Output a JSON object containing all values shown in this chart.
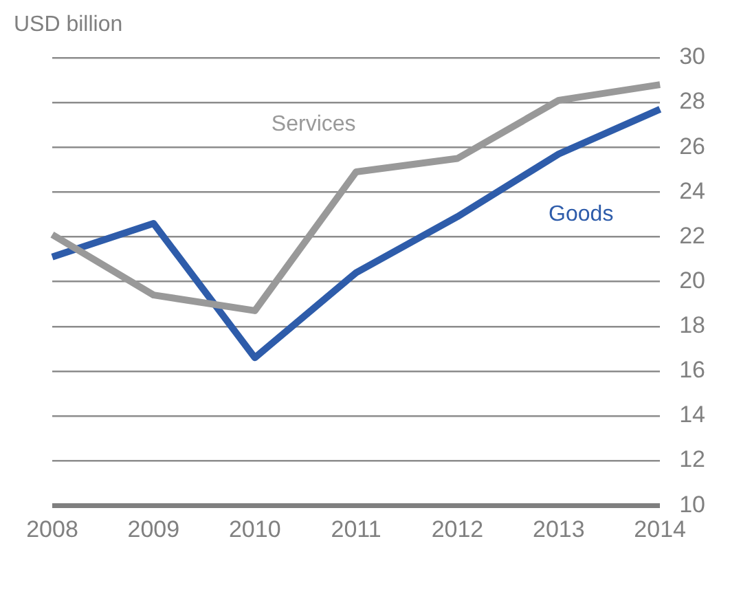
{
  "chart_data": {
    "type": "line",
    "ylabel": "USD billion",
    "categories": [
      "2008",
      "2009",
      "2010",
      "2011",
      "2012",
      "2013",
      "2014"
    ],
    "series": [
      {
        "name": "Services",
        "color": "#999999",
        "values": [
          22.1,
          19.4,
          18.7,
          24.9,
          25.5,
          28.1,
          28.8
        ]
      },
      {
        "name": "Goods",
        "color": "#2e5caa",
        "values": [
          21.1,
          22.6,
          16.6,
          20.4,
          22.9,
          25.7,
          27.7
        ]
      }
    ],
    "ylim": [
      10,
      30
    ],
    "yticks": [
      10,
      12,
      14,
      16,
      18,
      20,
      22,
      24,
      26,
      28,
      30
    ],
    "grid": "y",
    "legend": false,
    "marker": "none",
    "line_style": "solid"
  }
}
